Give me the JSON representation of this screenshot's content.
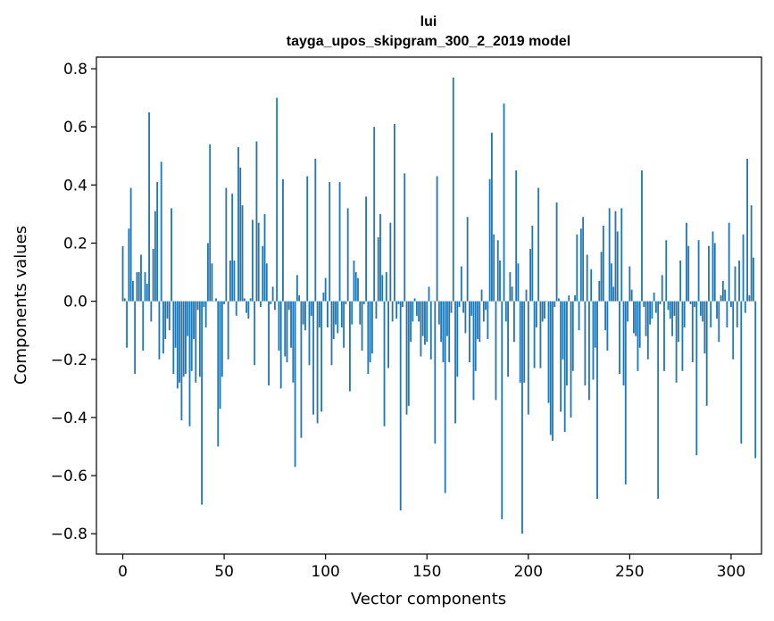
{
  "chart_data": {
    "type": "bar",
    "title": "lui",
    "subtitle": "tayga_upos_skipgram_300_2_2019 model",
    "xlabel": "Vector components",
    "ylabel": "Components values",
    "xlim": [
      -13,
      315
    ],
    "ylim": [
      -0.87,
      0.84
    ],
    "xticks": [
      0,
      50,
      100,
      150,
      200,
      250,
      300
    ],
    "yticks": [
      -0.8,
      -0.6,
      -0.4,
      -0.2,
      0.0,
      0.2,
      0.4,
      0.6,
      0.8
    ],
    "xtick_labels": [
      "0",
      "50",
      "100",
      "150",
      "200",
      "250",
      "300"
    ],
    "ytick_labels": [
      "−0.8",
      "−0.6",
      "−0.4",
      "−0.2",
      "0.0",
      "0.2",
      "0.4",
      "0.6",
      "0.8"
    ],
    "color": "#1f77b4",
    "values": [
      0.19,
      0.01,
      -0.16,
      0.25,
      0.39,
      0.07,
      -0.25,
      0.1,
      0.1,
      0.16,
      -0.17,
      0.1,
      0.06,
      0.65,
      -0.07,
      0.18,
      0.31,
      0.41,
      -0.2,
      0.48,
      -0.18,
      -0.13,
      -0.06,
      -0.1,
      0.32,
      -0.25,
      -0.16,
      -0.3,
      -0.28,
      -0.41,
      -0.26,
      -0.25,
      -0.12,
      -0.43,
      -0.24,
      -0.13,
      -0.28,
      -0.03,
      -0.26,
      -0.7,
      -0.02,
      -0.09,
      0.2,
      0.54,
      0.13,
      0.0,
      0.01,
      -0.5,
      -0.37,
      -0.26,
      -0.01,
      0.39,
      -0.2,
      0.14,
      0.37,
      0.14,
      -0.05,
      0.53,
      0.46,
      0.33,
      0.01,
      -0.04,
      -0.06,
      0.01,
      0.28,
      -0.22,
      0.55,
      0.27,
      -0.02,
      0.19,
      0.3,
      0.13,
      -0.29,
      -0.01,
      0.05,
      -0.03,
      0.7,
      -0.17,
      -0.3,
      0.42,
      -0.19,
      -0.21,
      -0.03,
      -0.16,
      -0.28,
      -0.57,
      0.09,
      0.02,
      -0.47,
      -0.08,
      -0.1,
      0.43,
      -0.22,
      -0.05,
      -0.39,
      0.49,
      -0.42,
      -0.09,
      -0.38,
      0.03,
      0.08,
      -0.09,
      0.41,
      -0.22,
      -0.13,
      -0.08,
      -0.11,
      0.41,
      -0.09,
      -0.16,
      -0.01,
      0.32,
      -0.31,
      -0.08,
      0.14,
      0.1,
      0.08,
      -0.08,
      -0.17,
      -0.01,
      0.36,
      -0.25,
      -0.21,
      -0.18,
      0.6,
      -0.06,
      0.22,
      0.3,
      0.09,
      -0.43,
      0.1,
      -0.23,
      0.27,
      -0.07,
      0.61,
      -0.06,
      -0.01,
      -0.72,
      -0.02,
      0.44,
      -0.39,
      -0.36,
      -0.14,
      -0.07,
      0.01,
      -0.05,
      -0.07,
      -0.19,
      -0.12,
      -0.15,
      -0.14,
      0.05,
      -0.2,
      0.0,
      -0.49,
      0.43,
      -0.08,
      -0.14,
      -0.21,
      -0.66,
      -0.12,
      -0.21,
      -0.04,
      0.77,
      -0.42,
      -0.26,
      -0.02,
      0.12,
      -0.04,
      -0.11,
      0.29,
      -0.21,
      -0.05,
      -0.34,
      -0.24,
      -0.13,
      -0.14,
      0.04,
      -0.07,
      -0.03,
      -0.13,
      0.42,
      0.58,
      0.23,
      -0.34,
      0.21,
      0.14,
      -0.75,
      0.68,
      -0.07,
      -0.26,
      0.1,
      0.05,
      -0.14,
      0.45,
      0.13,
      -0.28,
      -0.8,
      -0.28,
      0.04,
      -0.39,
      0.18,
      0.26,
      -0.23,
      -0.09,
      0.39,
      -0.23,
      -0.07,
      -0.06,
      0.0,
      -0.35,
      -0.46,
      -0.48,
      -0.02,
      0.34,
      0.01,
      -0.38,
      -0.2,
      -0.45,
      -0.29,
      0.02,
      -0.4,
      -0.24,
      0.02,
      0.23,
      -0.1,
      0.25,
      0.29,
      -0.29,
      0.16,
      -0.34,
      0.11,
      -0.27,
      -0.16,
      -0.68,
      0.07,
      0.17,
      0.26,
      -0.1,
      -0.17,
      0.32,
      0.13,
      0.05,
      0.31,
      0.24,
      -0.25,
      0.32,
      -0.29,
      -0.63,
      -0.07,
      0.12,
      0.04,
      -0.11,
      -0.12,
      -0.24,
      -0.16,
      0.45,
      -0.02,
      -0.12,
      -0.2,
      -0.08,
      -0.06,
      0.03,
      -0.04,
      -0.68,
      -0.01,
      0.09,
      -0.24,
      0.21,
      -0.03,
      -0.06,
      -0.12,
      -0.05,
      -0.28,
      -0.14,
      0.14,
      -0.24,
      -0.09,
      0.27,
      0.19,
      -0.01,
      -0.21,
      -0.02,
      -0.53,
      0.21,
      -0.05,
      -0.07,
      -0.18,
      -0.36,
      0.19,
      -0.09,
      0.24,
      0.2,
      -0.06,
      -0.14,
      0.02,
      0.07,
      0.04,
      -0.09,
      0.27,
      -0.02,
      -0.2,
      0.12,
      -0.09,
      0.14,
      -0.49,
      0.23,
      -0.04,
      0.49,
      0.02,
      0.33,
      0.15,
      -0.54
    ]
  }
}
